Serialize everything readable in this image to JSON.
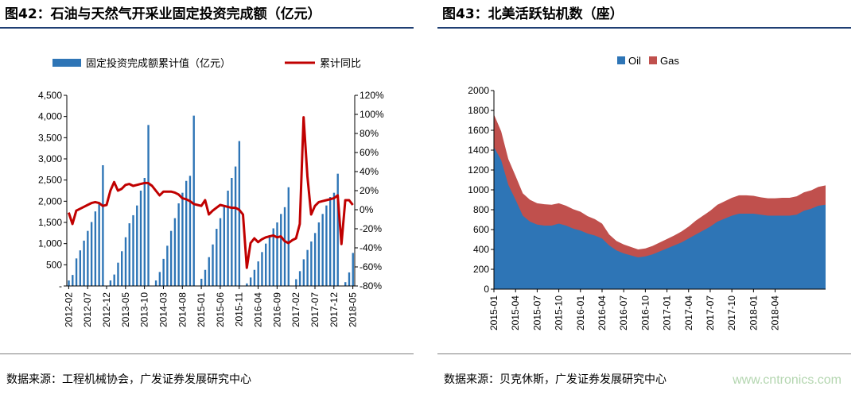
{
  "left": {
    "title": "图42：石油与天然气开采业固定投资完成额（亿元）",
    "source": "数据来源：工程机械协会，广发证券发展研究中心"
  },
  "right": {
    "title": "图43：北美活跃钻机数（座）",
    "source": "数据来源：贝克休斯，广发证券发展研究中心"
  },
  "watermark": "www.cntronics.com",
  "chart_data": [
    {
      "type": "bar+line",
      "title": "",
      "legend_position": "top",
      "y_left_ticks": [
        "-",
        "500",
        "1,000",
        "1,500",
        "2,000",
        "2,500",
        "3,000",
        "3,500",
        "4,000",
        "4,500"
      ],
      "ylim_left": [
        0,
        4500
      ],
      "y_right_ticks": [
        "-80%",
        "-60%",
        "-40%",
        "-20%",
        "0%",
        "20%",
        "40%",
        "60%",
        "80%",
        "100%",
        "120%"
      ],
      "ylim_right": [
        -80,
        120
      ],
      "x_tick_labels": [
        "2012-02",
        "2012-07",
        "2012-12",
        "2013-05",
        "2013-10",
        "2014-03",
        "2014-08",
        "2015-01",
        "2015-06",
        "2015-11",
        "2016-04",
        "2016-09",
        "2017-02",
        "2017-07",
        "2017-12",
        "2018-05"
      ],
      "x_start": "2012-02",
      "series": [
        {
          "name": "固定投资完成额累计值（亿元）",
          "kind": "bar",
          "axis": "left",
          "color": "#2e75b6",
          "values": [
            130,
            260,
            650,
            840,
            1070,
            1300,
            1510,
            1760,
            1980,
            2850,
            0,
            130,
            270,
            550,
            820,
            1150,
            1480,
            1670,
            1900,
            2250,
            2550,
            3800,
            0,
            130,
            330,
            640,
            950,
            1300,
            1600,
            1950,
            2200,
            2480,
            2600,
            4020,
            0,
            170,
            380,
            680,
            980,
            1350,
            1600,
            1900,
            2250,
            2550,
            2820,
            3420,
            0,
            60,
            200,
            380,
            580,
            800,
            1000,
            1200,
            1360,
            1500,
            1700,
            1860,
            2330,
            0,
            160,
            350,
            630,
            850,
            1050,
            1250,
            1500,
            1700,
            1900,
            2100,
            2200,
            2650,
            0,
            90,
            320,
            780
          ]
        },
        {
          "name": "累计同比",
          "kind": "line",
          "axis": "right",
          "color": "#c00000",
          "values": [
            -3,
            -15,
            -1,
            1,
            3,
            5,
            7,
            8,
            7,
            4,
            5,
            20,
            29,
            20,
            22,
            26,
            27,
            25,
            26,
            27,
            28,
            28,
            25,
            20,
            15,
            19,
            19,
            19,
            18,
            16,
            12,
            11,
            9,
            6,
            5,
            4,
            10,
            -5,
            -1,
            2,
            5,
            4,
            3,
            2,
            2,
            0,
            -5,
            -61,
            -35,
            -30,
            -34,
            -31,
            -29,
            -28,
            -27,
            -29,
            -28,
            -33,
            -35,
            -32,
            -30,
            -15,
            97,
            35,
            -5,
            4,
            8,
            9,
            10,
            11,
            12,
            15,
            -36,
            10,
            10,
            5
          ]
        }
      ]
    },
    {
      "type": "area",
      "stacked": true,
      "title": "",
      "legend_position": "top",
      "ylim": [
        0,
        2000
      ],
      "y_ticks": [
        0,
        200,
        400,
        600,
        800,
        1000,
        1200,
        1400,
        1600,
        1800,
        2000
      ],
      "x_tick_labels": [
        "2015-01",
        "2015-04",
        "2015-07",
        "2015-10",
        "2016-01",
        "2016-04",
        "2016-07",
        "2016-10",
        "2017-01",
        "2017-04",
        "2017-07",
        "2017-10",
        "2018-01",
        "2018-04"
      ],
      "x_start": "2015-01",
      "series": [
        {
          "name": "Oil",
          "color": "#2e75b6",
          "values": [
            1430,
            1300,
            1050,
            900,
            740,
            680,
            650,
            640,
            640,
            660,
            640,
            610,
            590,
            560,
            540,
            510,
            440,
            390,
            360,
            340,
            320,
            330,
            350,
            380,
            410,
            440,
            470,
            510,
            550,
            590,
            630,
            680,
            710,
            740,
            760,
            760,
            760,
            750,
            740,
            740,
            740,
            740,
            750,
            790,
            810,
            840,
            850
          ]
        },
        {
          "name": "Gas",
          "color": "#c0504d",
          "values": [
            330,
            290,
            260,
            240,
            225,
            220,
            215,
            215,
            210,
            205,
            200,
            195,
            190,
            175,
            165,
            150,
            110,
            95,
            90,
            85,
            80,
            80,
            85,
            90,
            95,
            100,
            110,
            120,
            140,
            150,
            160,
            170,
            175,
            180,
            185,
            185,
            180,
            175,
            175,
            175,
            180,
            180,
            185,
            185,
            185,
            190,
            195
          ]
        }
      ]
    }
  ]
}
